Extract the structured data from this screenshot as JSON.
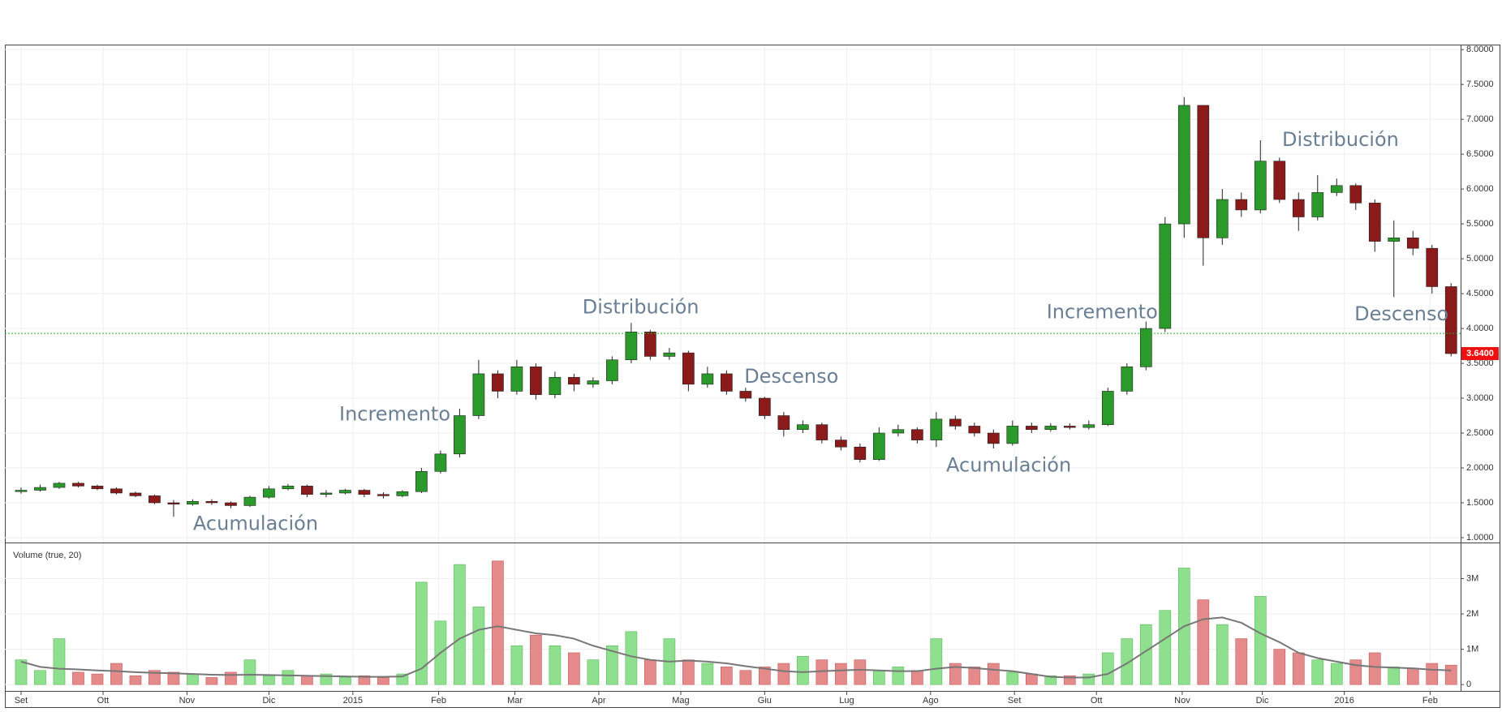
{
  "chart_data": [
    {
      "type": "candlestick",
      "up_color": "#2a9a2a",
      "down_color": "#8b1a1a",
      "grid": true,
      "x": [
        0,
        1,
        2,
        3,
        4,
        5,
        6,
        7,
        8,
        9,
        10,
        11,
        12,
        13,
        14,
        15,
        16,
        17,
        18,
        19,
        20,
        21,
        22,
        23,
        24,
        25,
        26,
        27,
        28,
        29,
        30,
        31,
        32,
        33,
        34,
        35,
        36,
        37,
        38,
        39,
        40,
        41,
        42,
        43,
        44,
        45,
        46,
        47,
        48,
        49,
        50,
        51,
        52,
        53,
        54,
        55,
        56,
        57,
        58,
        59,
        60,
        61,
        62,
        63,
        64,
        65,
        66,
        67,
        68,
        69,
        70,
        71,
        72,
        73,
        74,
        75
      ],
      "open": [
        1.66,
        1.68,
        1.72,
        1.78,
        1.74,
        1.7,
        1.64,
        1.6,
        1.5,
        1.48,
        1.52,
        1.5,
        1.46,
        1.58,
        1.7,
        1.74,
        1.62,
        1.64,
        1.68,
        1.62,
        1.6,
        1.66,
        1.95,
        2.2,
        2.75,
        3.35,
        3.1,
        3.45,
        3.05,
        3.3,
        3.2,
        3.25,
        3.55,
        3.95,
        3.6,
        3.65,
        3.2,
        3.35,
        3.1,
        3.0,
        2.75,
        2.55,
        2.62,
        2.4,
        2.3,
        2.12,
        2.5,
        2.55,
        2.4,
        2.7,
        2.6,
        2.5,
        2.35,
        2.6,
        2.55,
        2.6,
        2.58,
        2.62,
        3.1,
        3.45,
        4.0,
        5.5,
        7.2,
        5.3,
        5.85,
        5.7,
        6.4,
        5.85,
        5.6,
        5.95,
        6.05,
        5.8,
        5.25,
        5.3,
        5.15,
        4.6
      ],
      "high": [
        1.72,
        1.76,
        1.8,
        1.8,
        1.76,
        1.72,
        1.66,
        1.62,
        1.54,
        1.55,
        1.55,
        1.52,
        1.6,
        1.74,
        1.77,
        1.76,
        1.68,
        1.7,
        1.7,
        1.65,
        1.68,
        2.0,
        2.25,
        2.85,
        3.55,
        3.4,
        3.55,
        3.5,
        3.38,
        3.35,
        3.3,
        3.6,
        4.08,
        3.98,
        3.72,
        3.68,
        3.45,
        3.4,
        3.15,
        3.02,
        2.8,
        2.68,
        2.65,
        2.45,
        2.35,
        2.58,
        2.62,
        2.58,
        2.8,
        2.75,
        2.65,
        2.55,
        2.68,
        2.65,
        2.64,
        2.64,
        2.68,
        3.15,
        3.5,
        4.1,
        5.6,
        7.32,
        7.2,
        6.0,
        5.95,
        6.7,
        6.45,
        5.95,
        6.2,
        6.15,
        6.08,
        5.85,
        5.55,
        5.4,
        5.2,
        4.65
      ],
      "low": [
        1.63,
        1.66,
        1.7,
        1.72,
        1.68,
        1.62,
        1.58,
        1.48,
        1.3,
        1.46,
        1.47,
        1.42,
        1.44,
        1.56,
        1.68,
        1.58,
        1.58,
        1.62,
        1.58,
        1.56,
        1.58,
        1.64,
        1.92,
        2.15,
        2.7,
        3.0,
        3.05,
        2.98,
        3.0,
        3.1,
        3.15,
        3.2,
        3.5,
        3.55,
        3.55,
        3.1,
        3.15,
        3.05,
        2.95,
        2.7,
        2.45,
        2.5,
        2.35,
        2.25,
        2.08,
        2.1,
        2.45,
        2.35,
        2.3,
        2.55,
        2.45,
        2.28,
        2.32,
        2.5,
        2.52,
        2.55,
        2.55,
        2.6,
        3.05,
        3.4,
        3.95,
        5.3,
        4.9,
        5.2,
        5.6,
        5.65,
        5.8,
        5.4,
        5.55,
        5.9,
        5.7,
        5.1,
        4.45,
        5.05,
        4.5,
        3.6
      ],
      "close": [
        1.68,
        1.72,
        1.78,
        1.74,
        1.7,
        1.64,
        1.6,
        1.5,
        1.48,
        1.52,
        1.5,
        1.46,
        1.58,
        1.7,
        1.74,
        1.62,
        1.64,
        1.68,
        1.62,
        1.6,
        1.66,
        1.95,
        2.2,
        2.75,
        3.35,
        3.1,
        3.45,
        3.05,
        3.3,
        3.2,
        3.25,
        3.55,
        3.95,
        3.6,
        3.65,
        3.2,
        3.35,
        3.1,
        3.0,
        2.75,
        2.55,
        2.62,
        2.4,
        2.3,
        2.12,
        2.5,
        2.55,
        2.4,
        2.7,
        2.6,
        2.5,
        2.35,
        2.6,
        2.55,
        2.6,
        2.58,
        2.62,
        3.1,
        3.45,
        4.0,
        5.5,
        7.2,
        5.3,
        5.85,
        5.7,
        6.4,
        5.85,
        5.6,
        5.95,
        6.05,
        5.8,
        5.25,
        5.3,
        5.15,
        4.6,
        3.64
      ],
      "xlim": [
        -0.85,
        75.5
      ],
      "xticks": [
        {
          "value": 0,
          "label": "Set"
        },
        {
          "value": 4.3,
          "label": "Ott"
        },
        {
          "value": 8.7,
          "label": "Nov"
        },
        {
          "value": 13,
          "label": "Dic"
        },
        {
          "value": 17.4,
          "label": "2015"
        },
        {
          "value": 21.9,
          "label": "Feb"
        },
        {
          "value": 25.9,
          "label": "Mar"
        },
        {
          "value": 30.3,
          "label": "Apr"
        },
        {
          "value": 34.6,
          "label": "Mag"
        },
        {
          "value": 39,
          "label": "Giu"
        },
        {
          "value": 43.3,
          "label": "Lug"
        },
        {
          "value": 47.7,
          "label": "Ago"
        },
        {
          "value": 52.1,
          "label": "Set"
        },
        {
          "value": 56.4,
          "label": "Ott"
        },
        {
          "value": 60.9,
          "label": "Nov"
        },
        {
          "value": 65.1,
          "label": "Dic"
        },
        {
          "value": 69.4,
          "label": "2016"
        },
        {
          "value": 73.9,
          "label": "Feb"
        }
      ],
      "ylim": [
        0.93,
        8.06
      ],
      "yticks": [
        {
          "value": 1,
          "label": "1.0000"
        },
        {
          "value": 1.5,
          "label": "1.5000"
        },
        {
          "value": 2,
          "label": "2.0000"
        },
        {
          "value": 2.5,
          "label": "2.5000"
        },
        {
          "value": 3,
          "label": "3.0000"
        },
        {
          "value": 3.5,
          "label": "3.5000"
        },
        {
          "value": 4,
          "label": "4.0000"
        },
        {
          "value": 4.5,
          "label": "4.5000"
        },
        {
          "value": 5,
          "label": "5.0000"
        },
        {
          "value": 5.5,
          "label": "5.5000"
        },
        {
          "value": 6,
          "label": "6.0000"
        },
        {
          "value": 6.5,
          "label": "6.5000"
        },
        {
          "value": 7,
          "label": "7.0000"
        },
        {
          "value": 7.5,
          "label": "7.5000"
        },
        {
          "value": 8,
          "label": "8.0000"
        }
      ],
      "reference_line": {
        "value": 3.93,
        "color": "#22b022"
      },
      "last_price": {
        "value": 3.64,
        "label": "3.6400",
        "color": "#ee1111"
      },
      "annotations": [
        {
          "text": "Acumulación",
          "x": 12.3,
          "y": 1.19
        },
        {
          "text": "Incremento",
          "x": 19.6,
          "y": 2.76
        },
        {
          "text": "Distribución",
          "x": 32.5,
          "y": 4.3
        },
        {
          "text": "Descenso",
          "x": 40.4,
          "y": 3.3
        },
        {
          "text": "Acumulación",
          "x": 51.8,
          "y": 2.03
        },
        {
          "text": "Incremento",
          "x": 56.7,
          "y": 4.23
        },
        {
          "text": "Distribución",
          "x": 69.2,
          "y": 6.7
        },
        {
          "text": "Descenso",
          "x": 72.4,
          "y": 4.2
        }
      ]
    },
    {
      "type": "bar",
      "title": "Volume (true, 20)",
      "up_color": "#8ee08e",
      "down_color": "#e58a8a",
      "values": [
        700000,
        400000,
        1300000,
        350000,
        300000,
        600000,
        250000,
        400000,
        350000,
        300000,
        200000,
        350000,
        700000,
        250000,
        400000,
        250000,
        300000,
        200000,
        250000,
        200000,
        300000,
        2900000,
        1800000,
        3400000,
        2200000,
        3500000,
        1100000,
        1400000,
        1100000,
        900000,
        700000,
        1100000,
        1500000,
        700000,
        1300000,
        700000,
        600000,
        500000,
        400000,
        500000,
        600000,
        800000,
        700000,
        600000,
        700000,
        400000,
        500000,
        400000,
        1300000,
        600000,
        500000,
        600000,
        350000,
        300000,
        250000,
        250000,
        300000,
        900000,
        1300000,
        1700000,
        2100000,
        3300000,
        2400000,
        1700000,
        1300000,
        2500000,
        1000000,
        900000,
        700000,
        600000,
        700000,
        900000,
        500000,
        450000,
        600000,
        550000
      ],
      "ma": {
        "color": "#777777",
        "values": [
          650000,
          500000,
          450000,
          430000,
          400000,
          380000,
          350000,
          330000,
          320000,
          300000,
          280000,
          270000,
          280000,
          270000,
          260000,
          250000,
          240000,
          230000,
          220000,
          220000,
          230000,
          450000,
          900000,
          1300000,
          1550000,
          1650000,
          1550000,
          1450000,
          1400000,
          1300000,
          1100000,
          950000,
          800000,
          700000,
          650000,
          680000,
          650000,
          600000,
          520000,
          450000,
          380000,
          350000,
          380000,
          400000,
          420000,
          400000,
          380000,
          380000,
          450000,
          500000,
          470000,
          420000,
          380000,
          300000,
          220000,
          200000,
          200000,
          300000,
          600000,
          950000,
          1300000,
          1650000,
          1850000,
          1900000,
          1750000,
          1450000,
          1200000,
          900000,
          750000,
          650000,
          550000,
          500000,
          480000,
          460000,
          420000,
          400000
        ]
      },
      "ylim": [
        -180000,
        4000000
      ],
      "yticks": [
        0,
        {
          "value": 1000000,
          "label": "1M"
        },
        {
          "value": 2000000,
          "label": "2M"
        },
        {
          "value": 3000000,
          "label": "3M"
        }
      ]
    }
  ]
}
